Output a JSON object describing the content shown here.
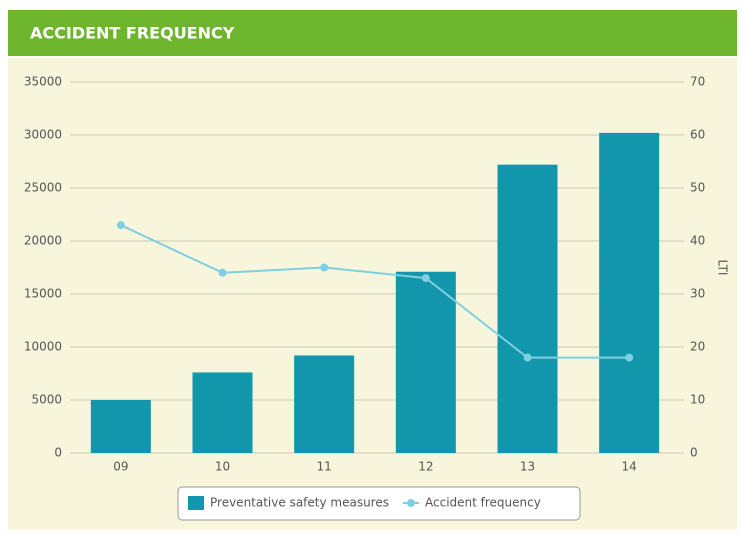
{
  "chart_data": {
    "type": "bar",
    "title": "ACCIDENT FREQUENCY",
    "categories": [
      "09",
      "10",
      "11",
      "12",
      "13",
      "14"
    ],
    "series": [
      {
        "name": "Preventative safety measures",
        "type": "bar",
        "color": "#1296ac",
        "values": [
          5000,
          7600,
          9200,
          17100,
          27200,
          30200
        ]
      },
      {
        "name": "Accident frequency",
        "type": "line",
        "axis": "y2",
        "color": "#7fcfe0",
        "values": [
          43,
          34,
          35,
          33,
          18,
          18
        ]
      }
    ],
    "ylim": [
      0,
      35000
    ],
    "yticks": [
      0,
      5000,
      10000,
      15000,
      20000,
      25000,
      30000,
      35000
    ],
    "y2lim": [
      0,
      70
    ],
    "y2ticks": [
      0,
      10,
      20,
      30,
      40,
      50,
      60,
      70
    ],
    "y2label": "LTI",
    "grid": true,
    "legend": "bottom"
  }
}
